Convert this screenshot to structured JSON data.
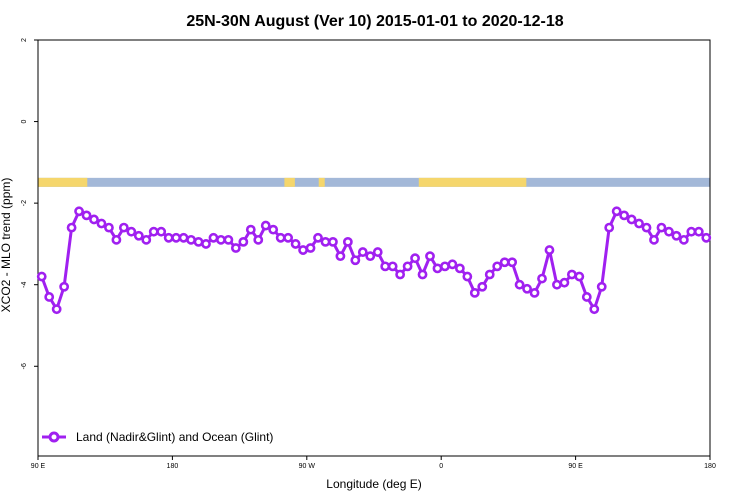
{
  "chart_data": {
    "type": "line",
    "title": "25N-30N August (Ver 10)   2015-01-01 to 2020-12-18",
    "xlabel": "Longitude (deg E)",
    "ylabel": "XCO2 - MLO trend (ppm)",
    "xlim": [
      90,
      540
    ],
    "ylim": [
      -8.2,
      2
    ],
    "x_ticks": [
      {
        "value": 90,
        "label": "90 E"
      },
      {
        "value": 180,
        "label": "180"
      },
      {
        "value": 270,
        "label": "90 W"
      },
      {
        "value": 360,
        "label": "0"
      },
      {
        "value": 450,
        "label": "90 E"
      },
      {
        "value": 540,
        "label": "180"
      }
    ],
    "y_ticks": [
      {
        "value": 2,
        "label": "2"
      },
      {
        "value": 0,
        "label": "0"
      },
      {
        "value": -2,
        "label": "-2"
      },
      {
        "value": -4,
        "label": "-4"
      },
      {
        "value": -6,
        "label": "-6"
      }
    ],
    "grid": false,
    "legend_position": "bottom-left",
    "colors": {
      "series": "#a020f0",
      "ocean": "#a3b8d8",
      "land": "#f5d66c"
    },
    "land_mask_segments": [
      [
        90,
        123
      ],
      [
        255,
        262
      ],
      [
        278,
        282
      ],
      [
        345,
        417
      ]
    ],
    "series": [
      {
        "name": "Land (Nadir&Glint) and Ocean (Glint)",
        "x": [
          92.5,
          97.5,
          102.5,
          107.5,
          112.5,
          117.5,
          122.5,
          127.5,
          132.5,
          137.5,
          142.5,
          147.5,
          152.5,
          157.5,
          162.5,
          167.5,
          172.5,
          177.5,
          182.5,
          187.5,
          192.5,
          197.5,
          202.5,
          207.5,
          212.5,
          217.5,
          222.5,
          227.5,
          232.5,
          237.5,
          242.5,
          247.5,
          252.5,
          257.5,
          262.5,
          267.5,
          272.5,
          277.5,
          282.5,
          287.5,
          292.5,
          297.5,
          302.5,
          307.5,
          312.5,
          317.5,
          322.5,
          327.5,
          332.5,
          337.5,
          342.5,
          347.5,
          352.5,
          357.5,
          362.5,
          367.5,
          372.5,
          377.5,
          382.5,
          387.5,
          392.5,
          397.5,
          402.5,
          407.5,
          412.5,
          417.5,
          422.5,
          427.5,
          432.5,
          437.5,
          442.5,
          447.5,
          452.5,
          457.5,
          462.5,
          467.5,
          472.5,
          477.5,
          482.5,
          487.5,
          492.5,
          497.5,
          502.5,
          507.5,
          512.5,
          517.5,
          522.5,
          527.5,
          532.5,
          537.5
        ],
        "y": [
          -3.8,
          -4.3,
          -4.6,
          -4.05,
          -2.6,
          -2.2,
          -2.3,
          -2.4,
          -2.5,
          -2.6,
          -2.9,
          -2.6,
          -2.7,
          -2.8,
          -2.9,
          -2.7,
          -2.7,
          -2.85,
          -2.85,
          -2.85,
          -2.9,
          -2.95,
          -3.0,
          -2.85,
          -2.9,
          -2.9,
          -3.1,
          -2.95,
          -2.65,
          -2.9,
          -2.55,
          -2.65,
          -2.85,
          -2.85,
          -3.0,
          -3.15,
          -3.1,
          -2.85,
          -2.95,
          -2.95,
          -3.3,
          -2.95,
          -3.4,
          -3.2,
          -3.3,
          -3.2,
          -3.55,
          -3.55,
          -3.75,
          -3.55,
          -3.35,
          -3.75,
          -3.3,
          -3.6,
          -3.55,
          -3.5,
          -3.6,
          -3.8,
          -4.2,
          -4.05,
          -3.75,
          -3.55,
          -3.45,
          -3.45,
          -4.0,
          -4.1,
          -4.2,
          -3.85,
          -3.15,
          -4.0,
          -3.95,
          -3.75,
          -3.8,
          -4.3,
          -4.6,
          -4.05,
          -2.6,
          -2.2,
          -2.3,
          -2.4,
          -2.5,
          -2.6,
          -2.9,
          -2.6,
          -2.7,
          -2.8,
          -2.9,
          -2.7,
          -2.7,
          -2.85
        ]
      }
    ]
  }
}
